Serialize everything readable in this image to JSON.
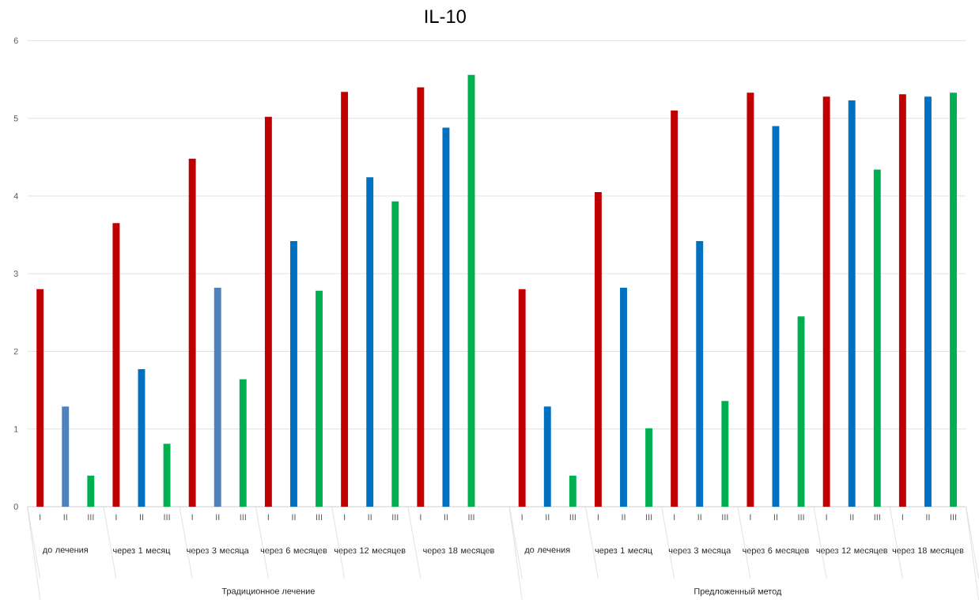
{
  "chart_data": {
    "type": "bar",
    "title": "IL-10",
    "categories": [
      "I",
      "II",
      "III",
      "I",
      "II",
      "III",
      "I",
      "II",
      "III",
      "I",
      "II",
      "III",
      "I",
      "II",
      "III",
      "I",
      "II",
      "III",
      null,
      "I",
      "II",
      "III",
      "I",
      "II",
      "III",
      "I",
      "II",
      "III",
      "I",
      "II",
      "III",
      "I",
      "II",
      "III",
      "I",
      "II",
      "III"
    ],
    "values": [
      2.8,
      1.29,
      0.4,
      3.65,
      1.77,
      0.81,
      4.48,
      2.82,
      1.64,
      5.02,
      3.42,
      2.78,
      5.34,
      4.24,
      3.93,
      5.4,
      4.88,
      5.56,
      null,
      2.8,
      1.29,
      0.4,
      4.05,
      2.82,
      1.01,
      5.1,
      3.42,
      1.36,
      5.33,
      4.9,
      2.45,
      5.28,
      5.23,
      4.34,
      5.31,
      5.28,
      5.33
    ],
    "colors": [
      "#c00000",
      "#4f81bd",
      "#00b050",
      "#c00000",
      "#0070c0",
      "#00b050",
      "#c00000",
      "#4f81bd",
      "#00b050",
      "#c00000",
      "#0070c0",
      "#00b050",
      "#c00000",
      "#0070c0",
      "#00b050",
      "#c00000",
      "#0070c0",
      "#00b050",
      "#ffffff",
      "#c00000",
      "#0070c0",
      "#00b050",
      "#c00000",
      "#0070c0",
      "#00b050",
      "#c00000",
      "#0070c0",
      "#00b050",
      "#c00000",
      "#0070c0",
      "#00b050",
      "#c00000",
      "#0070c0",
      "#00b050",
      "#c00000",
      "#0070c0",
      "#00b050"
    ],
    "ylim": [
      0,
      6
    ],
    "yticks": [
      0,
      1,
      2,
      3,
      4,
      5,
      6
    ],
    "grid": "y",
    "annotations": [
      "до лечения",
      "через 1 месяц",
      "через 3 месяца",
      "через 6 месяцев",
      "через 12 месяцев",
      "через 18 месяцев",
      "до лечения",
      "через 1 месяц",
      "через 3 месяца",
      "через 6 месяцев",
      "через 12 месяцев",
      "через 18 месяцев",
      "Традиционное лечение",
      "Предложенный метод"
    ]
  }
}
